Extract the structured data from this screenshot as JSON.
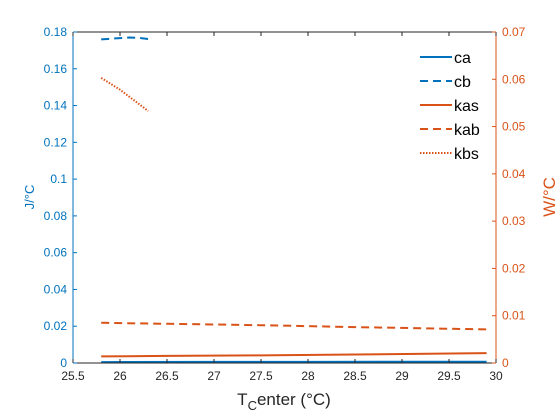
{
  "chart_data": {
    "type": "line",
    "xlabel_main": "T",
    "xlabel_sub": "C",
    "xlabel_rest": "enter (°C)",
    "xlim": [
      25.5,
      30
    ],
    "xticks": [
      25.5,
      26,
      26.5,
      27,
      27.5,
      28,
      28.5,
      29,
      29.5,
      30
    ],
    "ylabel_left": "J/°C",
    "ylim_left": [
      0,
      0.18
    ],
    "yticks_left": [
      0,
      0.02,
      0.04,
      0.06,
      0.08,
      0.1,
      0.12,
      0.14,
      0.16,
      0.18
    ],
    "ylabel_right": "W/°C",
    "ylim_right": [
      0,
      0.07
    ],
    "yticks_right": [
      0,
      0.01,
      0.02,
      0.03,
      0.04,
      0.05,
      0.06,
      0.07
    ],
    "grid": false,
    "legend_position": "top-right",
    "colors": {
      "left": "#0072BD",
      "right": "#D95319"
    },
    "series": [
      {
        "name": "ca",
        "axis": "left",
        "style": "solid",
        "x": [
          25.8,
          27.0,
          28.0,
          29.0,
          29.9
        ],
        "y": [
          0.0005,
          0.0006,
          0.0006,
          0.0007,
          0.0007
        ]
      },
      {
        "name": "cb",
        "axis": "left",
        "style": "dashed",
        "x": [
          25.8,
          25.95,
          26.1,
          26.2,
          26.3
        ],
        "y": [
          0.176,
          0.1765,
          0.177,
          0.1768,
          0.1762
        ]
      },
      {
        "name": "kas",
        "axis": "right",
        "style": "solid",
        "x": [
          25.8,
          26.5,
          27.5,
          28.5,
          29.9
        ],
        "y": [
          0.0014,
          0.0015,
          0.0016,
          0.0018,
          0.0021
        ]
      },
      {
        "name": "kab",
        "axis": "right",
        "style": "dashed",
        "x": [
          25.8,
          26.5,
          27.5,
          28.5,
          29.9
        ],
        "y": [
          0.0085,
          0.0083,
          0.008,
          0.0076,
          0.0071
        ]
      },
      {
        "name": "kbs",
        "axis": "right",
        "style": "dotted",
        "x": [
          25.8,
          26.0,
          26.1,
          26.3
        ],
        "y": [
          0.0603,
          0.0578,
          0.0563,
          0.0533
        ]
      }
    ]
  }
}
